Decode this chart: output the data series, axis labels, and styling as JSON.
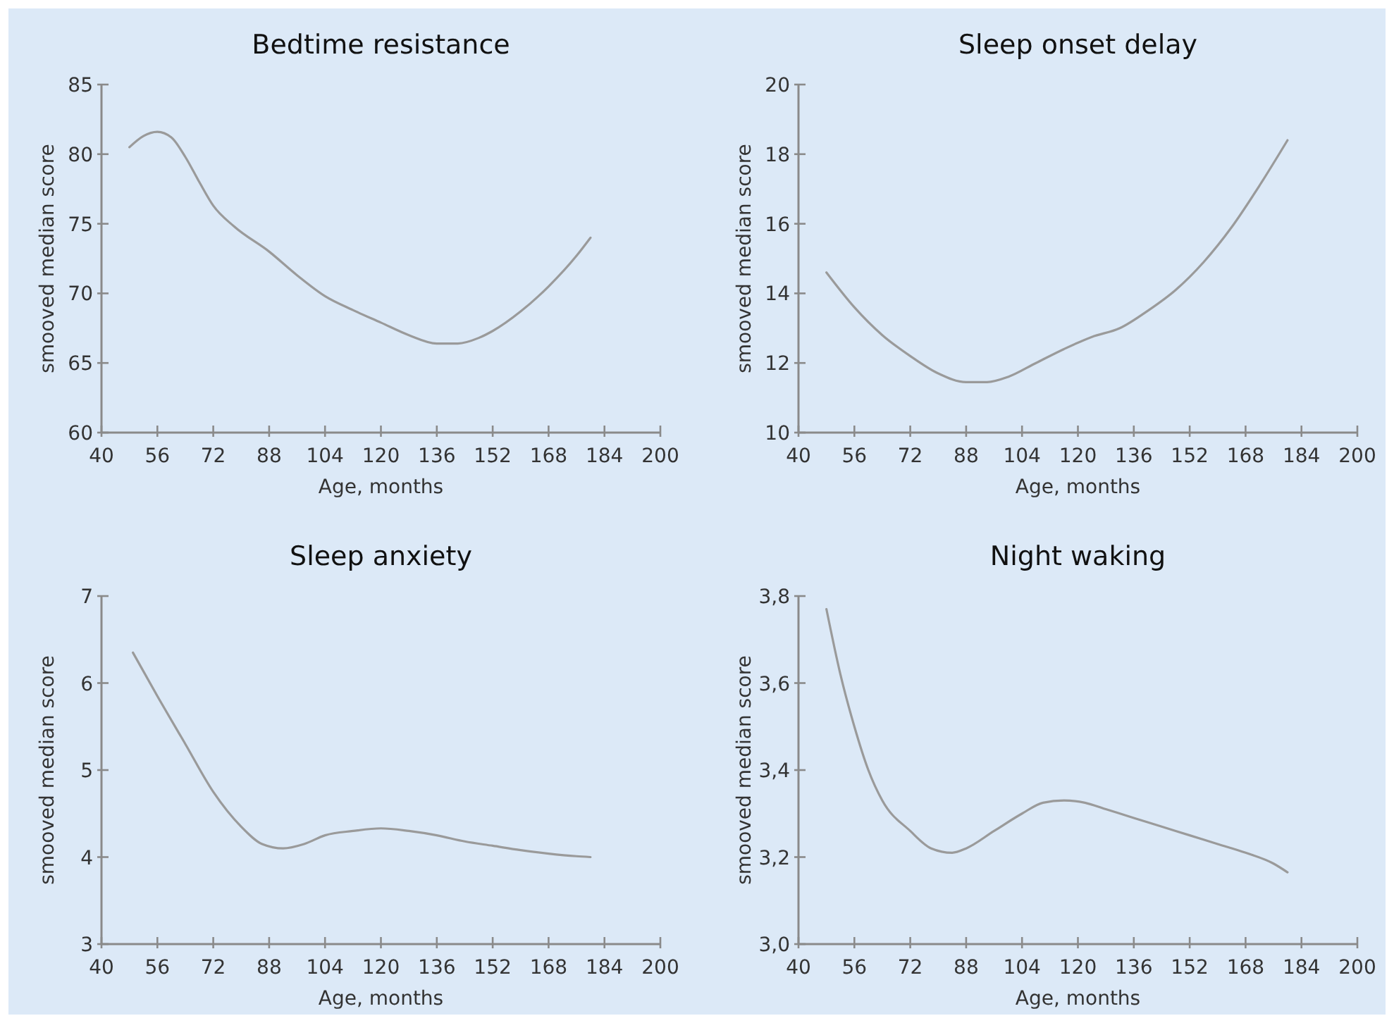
{
  "chart_data": [
    {
      "type": "line",
      "title": "Bedtime resistance",
      "xlabel": "Age, months",
      "ylabel": "smooved median score",
      "xlim": [
        40,
        200
      ],
      "xticks": [
        40,
        56,
        72,
        88,
        104,
        120,
        136,
        152,
        168,
        184,
        200
      ],
      "ylim": [
        60,
        85
      ],
      "yticks": [
        60,
        65,
        70,
        75,
        80,
        85
      ],
      "series": [
        {
          "color": "#9a9a9a",
          "x": [
            48,
            52,
            56,
            60,
            64,
            68,
            72,
            78,
            88,
            96,
            104,
            112,
            120,
            128,
            136,
            142,
            148,
            152,
            160,
            168,
            176,
            180
          ],
          "values": [
            80.5,
            81.3,
            81.6,
            81.2,
            79.8,
            78,
            76.3,
            74.8,
            73,
            71.3,
            69.8,
            68.8,
            67.9,
            67,
            66.4,
            66.4,
            66.8,
            67.3,
            68.7,
            70.5,
            72.7,
            74
          ]
        }
      ]
    },
    {
      "type": "line",
      "title": "Sleep onset delay",
      "xlabel": "Age, months",
      "ylabel": "smooved median score",
      "xlim": [
        40,
        200
      ],
      "xticks": [
        40,
        56,
        72,
        88,
        104,
        120,
        136,
        152,
        168,
        184,
        200
      ],
      "ylim": [
        10,
        20
      ],
      "yticks": [
        10,
        12,
        14,
        16,
        18,
        20
      ],
      "series": [
        {
          "color": "#9a9a9a",
          "x": [
            48,
            56,
            64,
            72,
            80,
            88,
            94,
            100,
            108,
            116,
            124,
            132,
            140,
            148,
            156,
            164,
            172,
            180
          ],
          "values": [
            14.6,
            13.6,
            12.8,
            12.2,
            11.7,
            11.45,
            11.45,
            11.6,
            12,
            12.4,
            12.75,
            13,
            13.5,
            14.1,
            14.9,
            15.9,
            17.1,
            18.4
          ]
        }
      ]
    },
    {
      "type": "line",
      "title": "Sleep anxiety",
      "xlabel": "Age, months",
      "ylabel": "smooved median score",
      "xlim": [
        40,
        200
      ],
      "xticks": [
        40,
        56,
        72,
        88,
        104,
        120,
        136,
        152,
        168,
        184,
        200
      ],
      "ylim": [
        3,
        7
      ],
      "yticks": [
        3,
        4,
        5,
        6,
        7
      ],
      "series": [
        {
          "color": "#9a9a9a",
          "x": [
            49,
            56,
            64,
            72,
            80,
            86,
            92,
            98,
            104,
            112,
            120,
            128,
            136,
            144,
            152,
            160,
            168,
            176,
            180
          ],
          "values": [
            6.35,
            5.85,
            5.3,
            4.75,
            4.35,
            4.15,
            4.1,
            4.15,
            4.25,
            4.3,
            4.33,
            4.3,
            4.25,
            4.18,
            4.13,
            4.08,
            4.04,
            4.01,
            4
          ]
        }
      ]
    },
    {
      "type": "line",
      "title": "Night waking",
      "xlabel": "Age, months",
      "ylabel": "smooved median score",
      "xlim": [
        40,
        200
      ],
      "xticks": [
        40,
        56,
        72,
        88,
        104,
        120,
        136,
        152,
        168,
        184,
        200
      ],
      "ylim": [
        3,
        3.8
      ],
      "yticks": [
        {
          "value": 3,
          "label": "3,0"
        },
        {
          "value": 3.2,
          "label": "3,2"
        },
        {
          "value": 3.4,
          "label": "3,4"
        },
        {
          "value": 3.6,
          "label": "3,6"
        },
        {
          "value": 3.8,
          "label": "3,8"
        }
      ],
      "series": [
        {
          "color": "#9a9a9a",
          "x": [
            48,
            52,
            56,
            60,
            64,
            72,
            78,
            84,
            88,
            96,
            104,
            110,
            116,
            122,
            128,
            136,
            144,
            152,
            160,
            168,
            176,
            180
          ],
          "values": [
            3.77,
            3.62,
            3.5,
            3.4,
            3.33,
            3.26,
            3.22,
            3.21,
            3.22,
            3.26,
            3.3,
            3.325,
            3.33,
            3.325,
            3.31,
            3.29,
            3.27,
            3.25,
            3.23,
            3.21,
            3.185,
            3.165
          ]
        }
      ]
    }
  ]
}
